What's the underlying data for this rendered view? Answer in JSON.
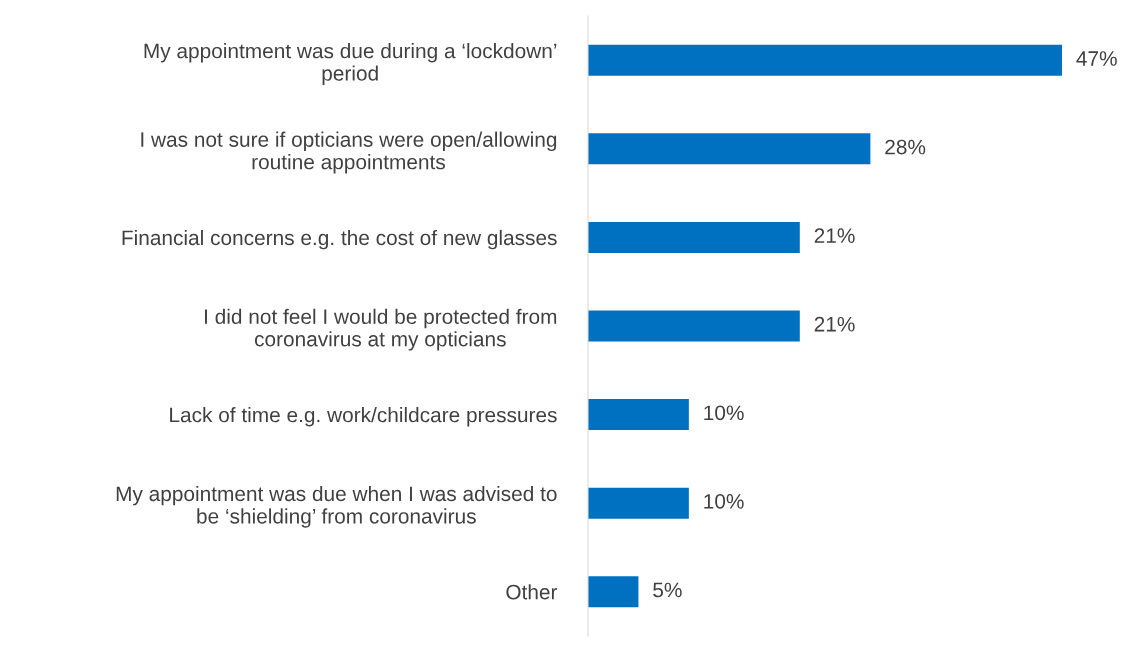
{
  "chart_data": {
    "type": "bar",
    "orientation": "horizontal",
    "categories": [
      "My appointment was due during a ‘lockdown’\nperiod",
      "I was not sure if opticians were open/allowing\nroutine appointments",
      "Financial concerns e.g. the cost of new glasses",
      "I did not feel I would be protected from\ncoronavirus at my opticians",
      "Lack of time e.g. work/childcare pressures",
      "My appointment was due when I was advised to\nbe ‘shielding’ from coronavirus",
      "Other"
    ],
    "values": [
      47,
      28,
      21,
      21,
      10,
      10,
      5
    ],
    "value_labels": [
      "47%",
      "28%",
      "21%",
      "21%",
      "10%",
      "10%",
      "5%"
    ],
    "color": "#0070c0",
    "grid": false,
    "legend": false
  }
}
